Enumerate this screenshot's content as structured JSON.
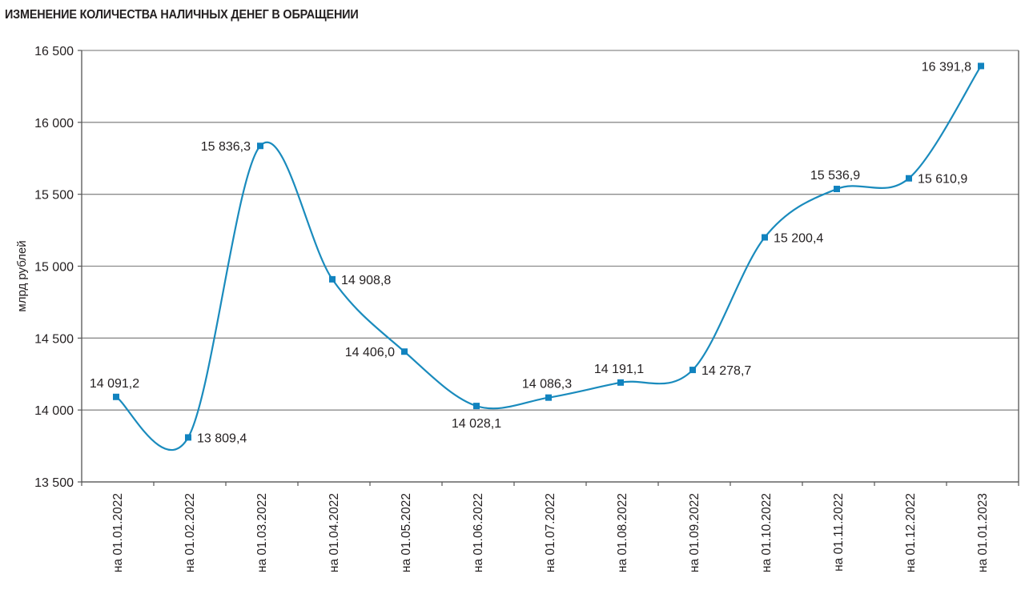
{
  "title": "ИЗМЕНЕНИЕ КОЛИЧЕСТВА НАЛИЧНЫХ ДЕНЕГ В ОБРАЩЕНИИ",
  "colors": {
    "line": "#1a8bbd",
    "marker": "#1183bf",
    "grid": "#8c8c8c",
    "axis": "#555555",
    "text": "#231f20"
  },
  "chart_data": {
    "type": "line",
    "title": "ИЗМЕНЕНИЕ КОЛИЧЕСТВА НАЛИЧНЫХ ДЕНЕГ В ОБРАЩЕНИИ",
    "xlabel": "",
    "ylabel": "млрд рублей",
    "ylim": [
      13500,
      16500
    ],
    "yticks": [
      13500,
      14000,
      14500,
      15000,
      15500,
      16000,
      16500
    ],
    "ytick_labels": [
      "13 500",
      "14 000",
      "14 500",
      "15 000",
      "15 500",
      "16 000",
      "16 500"
    ],
    "grid": true,
    "legend": "none",
    "smooth": true,
    "marker": "square",
    "categories": [
      "на 01.01.2022",
      "на 01.02.2022",
      "на 01.03.2022",
      "на 01.04.2022",
      "на 01.05.2022",
      "на 01.06.2022",
      "на 01.07.2022",
      "на 01.08.2022",
      "на 01.09.2022",
      "на 01.10.2022",
      "на 01.11.2022",
      "на 01.12.2022",
      "на 01.01.2023"
    ],
    "values": [
      14091.2,
      13809.4,
      15836.3,
      14908.8,
      14406.0,
      14028.1,
      14086.3,
      14191.1,
      14278.7,
      15200.4,
      15536.9,
      15610.9,
      16391.8
    ],
    "data_labels": [
      "14 091,2",
      "13 809,4",
      "15 836,3",
      "14 908,8",
      "14 406,0",
      "14 028,1",
      "14 086,3",
      "14 191,1",
      "14 278,7",
      "15 200,4",
      "15 536,9",
      "15 610,9",
      "16 391,8"
    ],
    "label_positions": [
      "above",
      "right",
      "left",
      "right",
      "left",
      "below",
      "above",
      "above",
      "right",
      "right",
      "above",
      "right",
      "left"
    ]
  }
}
